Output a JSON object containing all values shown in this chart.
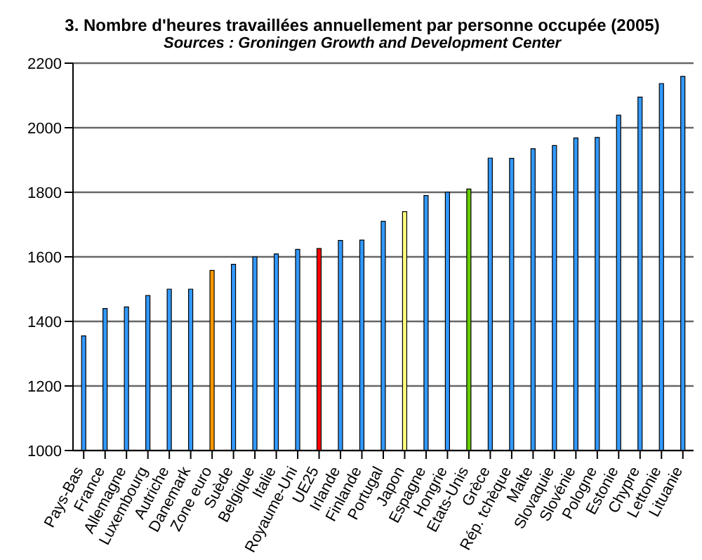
{
  "chart_data": {
    "type": "bar",
    "title": "3. Nombre d'heures travaillées annuellement par personne occupée (2005)",
    "subtitle": "Sources : Groningen Growth and Development Center",
    "categories": [
      "Pays-Bas",
      "France",
      "Allemagne",
      "Luxembourg",
      "Autriche",
      "Danemark",
      "Zone euro",
      "Suède",
      "Belgique",
      "Italie",
      "Royaume-Uni",
      "UE25",
      "Irlande",
      "Finlande",
      "Portugal",
      "Japon",
      "Espagne",
      "Hongrie",
      "Etats-Unis",
      "Grèce",
      "Rép. tchèque",
      "Malte",
      "Slovaquie",
      "Slovénie",
      "Pologne",
      "Estonie",
      "Chypre",
      "Lettonie",
      "Lituanie"
    ],
    "values": [
      1355,
      1440,
      1445,
      1480,
      1500,
      1500,
      1558,
      1577,
      1600,
      1609,
      1623,
      1626,
      1651,
      1652,
      1710,
      1740,
      1790,
      1800,
      1810,
      1906,
      1905,
      1935,
      1945,
      1968,
      1970,
      2039,
      2095,
      2137,
      2159
    ],
    "colors": [
      "#3399ff",
      "#3399ff",
      "#3399ff",
      "#3399ff",
      "#3399ff",
      "#3399ff",
      "#ff9900",
      "#3399ff",
      "#3399ff",
      "#3399ff",
      "#3399ff",
      "#ff0000",
      "#3399ff",
      "#3399ff",
      "#3399ff",
      "#ffff80",
      "#3399ff",
      "#3399ff",
      "#66cc00",
      "#3399ff",
      "#3399ff",
      "#3399ff",
      "#3399ff",
      "#3399ff",
      "#3399ff",
      "#3399ff",
      "#3399ff",
      "#3399ff",
      "#3399ff"
    ],
    "ylim": [
      1000,
      2200
    ],
    "yticks": [
      1000,
      1200,
      1400,
      1600,
      1800,
      2000,
      2200
    ],
    "grid": "y",
    "legend": false
  }
}
